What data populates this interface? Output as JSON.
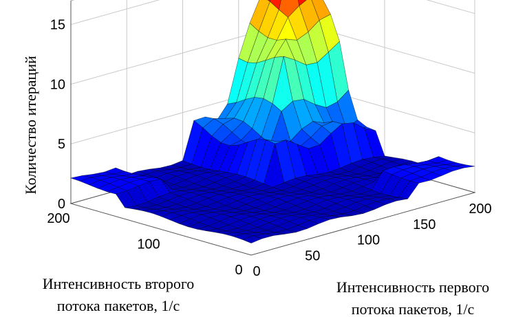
{
  "chart_data": {
    "type": "surface",
    "title": "",
    "xlabel_lines": [
      "Интенсивность первого",
      "потока пакетов, 1/с"
    ],
    "ylabel_lines": [
      "Интенсивность второго",
      "потока пакетов, 1/с"
    ],
    "zlabel": "Количество итераций",
    "xlim": [
      0,
      200
    ],
    "ylim": [
      0,
      200
    ],
    "zlim": [
      0,
      17
    ],
    "xticks": [
      "0",
      "50",
      "100",
      "150",
      "200"
    ],
    "yticks": [
      "0",
      "100",
      "200"
    ],
    "zticks": [
      "0",
      "5",
      "10",
      "15"
    ],
    "grid": true,
    "colormap": "jet",
    "x": [
      0,
      10,
      20,
      30,
      40,
      50,
      60,
      70,
      80,
      90,
      100,
      110,
      120,
      130,
      140,
      150,
      160,
      170,
      180,
      190,
      200
    ],
    "y": [
      0,
      10,
      20,
      30,
      40,
      50,
      60,
      70,
      80,
      90,
      100,
      110,
      120,
      130,
      140,
      150,
      160,
      170,
      180,
      190,
      200
    ],
    "z_description": "Iterations stay near 1 for low intensities of either stream and rise to a peak of about 17 when both stream intensities approach 200 1/s; plateaus near 7–8 and 11–12 iterations at intermediate loads."
  }
}
